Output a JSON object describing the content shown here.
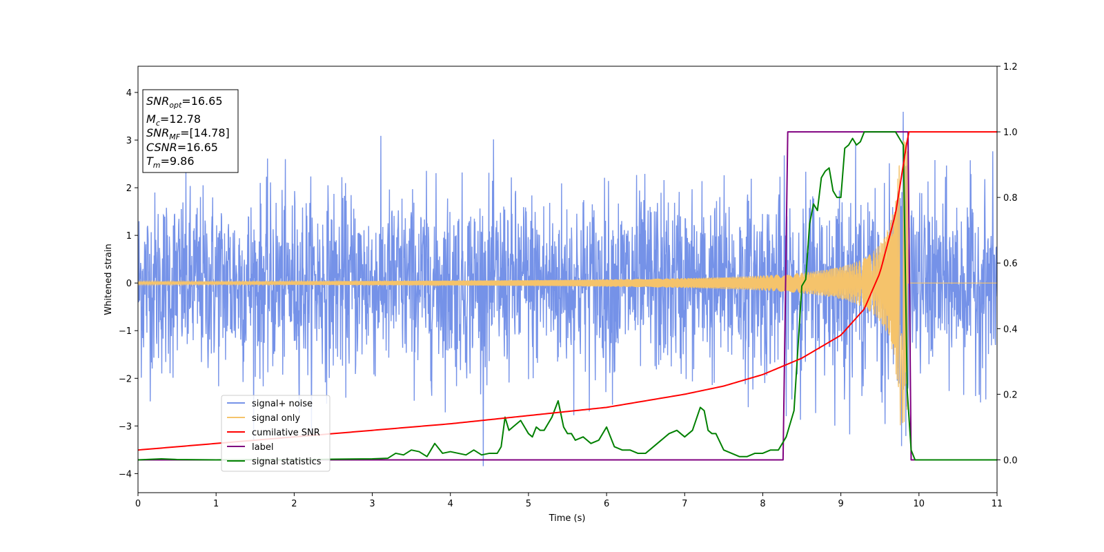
{
  "chart_data": {
    "type": "line",
    "xlabel": "Time (s)",
    "ylabel_left": "Whitened strain",
    "xlim": [
      0,
      11
    ],
    "ylim_left": [
      -4.4,
      4.55
    ],
    "ylim_right": [
      -0.1,
      1.2
    ],
    "x_ticks": [
      0,
      1,
      2,
      3,
      4,
      5,
      6,
      7,
      8,
      9,
      10,
      11
    ],
    "y_left_ticks": [
      -4,
      -3,
      -2,
      -1,
      0,
      1,
      2,
      3,
      4
    ],
    "y_right_ticks": [
      0.0,
      0.2,
      0.4,
      0.6,
      0.8,
      1.0,
      1.2
    ],
    "legend_position": "lower-left",
    "grid": false,
    "info_box": {
      "snr_opt": {
        "base": "SNR",
        "sub": "opt",
        "value": "=16.65"
      },
      "mc": {
        "base": "M",
        "sub": "c",
        "value": "=12.78"
      },
      "snr_mf": {
        "base": "SNR",
        "sub": "MF",
        "value": "=[14.78]"
      },
      "csnr": {
        "base": "CSNR",
        "value": "=16.65"
      },
      "tm": {
        "base": "T",
        "sub": "m",
        "value": "=9.86"
      }
    },
    "series": [
      {
        "name": "signal+ noise",
        "axis": "left",
        "color": "#7592e8",
        "description": "white noise with approx std 1.0 plus injected chirp"
      },
      {
        "name": "signal only",
        "axis": "left",
        "color": "#f5c36b",
        "merger_time": 9.86,
        "amplitude_start": 0.03,
        "amplitude_at_merger": 3.0
      },
      {
        "name": "cumilative SNR",
        "axis": "right",
        "color": "#ff0000",
        "x": [
          0,
          1,
          2,
          3,
          4,
          5,
          6,
          7,
          7.5,
          8,
          8.5,
          9,
          9.3,
          9.5,
          9.7,
          9.86,
          9.87,
          11
        ],
        "y": [
          0.03,
          0.05,
          0.07,
          0.09,
          0.11,
          0.135,
          0.16,
          0.2,
          0.225,
          0.26,
          0.31,
          0.38,
          0.46,
          0.57,
          0.75,
          0.99,
          1.0,
          1.0
        ]
      },
      {
        "name": "label",
        "axis": "right",
        "color": "#800080",
        "x": [
          0,
          8.26,
          8.32,
          9.86,
          9.9,
          11
        ],
        "y": [
          0,
          0,
          1,
          1,
          0,
          0
        ]
      },
      {
        "name": "signal statistics",
        "axis": "right",
        "color": "#008000",
        "x": [
          0,
          0.3,
          0.5,
          1,
          1.5,
          2,
          2.5,
          3,
          3.2,
          3.3,
          3.4,
          3.5,
          3.6,
          3.7,
          3.8,
          3.9,
          4.0,
          4.1,
          4.2,
          4.3,
          4.4,
          4.5,
          4.6,
          4.65,
          4.7,
          4.75,
          4.8,
          4.9,
          5.0,
          5.05,
          5.1,
          5.15,
          5.2,
          5.3,
          5.38,
          5.45,
          5.5,
          5.55,
          5.6,
          5.7,
          5.8,
          5.9,
          6.0,
          6.1,
          6.2,
          6.3,
          6.4,
          6.5,
          6.6,
          6.7,
          6.8,
          6.9,
          7.0,
          7.1,
          7.2,
          7.25,
          7.3,
          7.35,
          7.4,
          7.5,
          7.6,
          7.7,
          7.8,
          7.9,
          8.0,
          8.1,
          8.2,
          8.3,
          8.4,
          8.5,
          8.55,
          8.6,
          8.65,
          8.7,
          8.75,
          8.8,
          8.85,
          8.9,
          8.95,
          9.0,
          9.05,
          9.1,
          9.15,
          9.2,
          9.25,
          9.3,
          9.35,
          9.4,
          9.5,
          9.6,
          9.7,
          9.8,
          9.85,
          9.9,
          9.95,
          10.0,
          10.05,
          10.2,
          11
        ],
        "y": [
          0,
          0.003,
          0.001,
          0.0,
          0.001,
          0.0,
          0.002,
          0.003,
          0.005,
          0.02,
          0.015,
          0.03,
          0.025,
          0.01,
          0.05,
          0.02,
          0.025,
          0.02,
          0.015,
          0.03,
          0.015,
          0.02,
          0.02,
          0.04,
          0.13,
          0.09,
          0.1,
          0.12,
          0.08,
          0.07,
          0.1,
          0.09,
          0.09,
          0.13,
          0.18,
          0.1,
          0.08,
          0.08,
          0.06,
          0.07,
          0.05,
          0.06,
          0.1,
          0.04,
          0.03,
          0.03,
          0.02,
          0.02,
          0.04,
          0.06,
          0.08,
          0.09,
          0.07,
          0.09,
          0.16,
          0.15,
          0.09,
          0.08,
          0.08,
          0.03,
          0.02,
          0.01,
          0.01,
          0.02,
          0.02,
          0.03,
          0.03,
          0.07,
          0.15,
          0.53,
          0.55,
          0.72,
          0.78,
          0.76,
          0.86,
          0.88,
          0.89,
          0.82,
          0.8,
          0.8,
          0.95,
          0.96,
          0.98,
          0.96,
          0.97,
          1.0,
          1.0,
          1.0,
          1.0,
          1.0,
          1.0,
          0.96,
          0.21,
          0.03,
          0.0,
          0.0,
          0.0,
          0.0,
          0.0
        ]
      }
    ]
  }
}
